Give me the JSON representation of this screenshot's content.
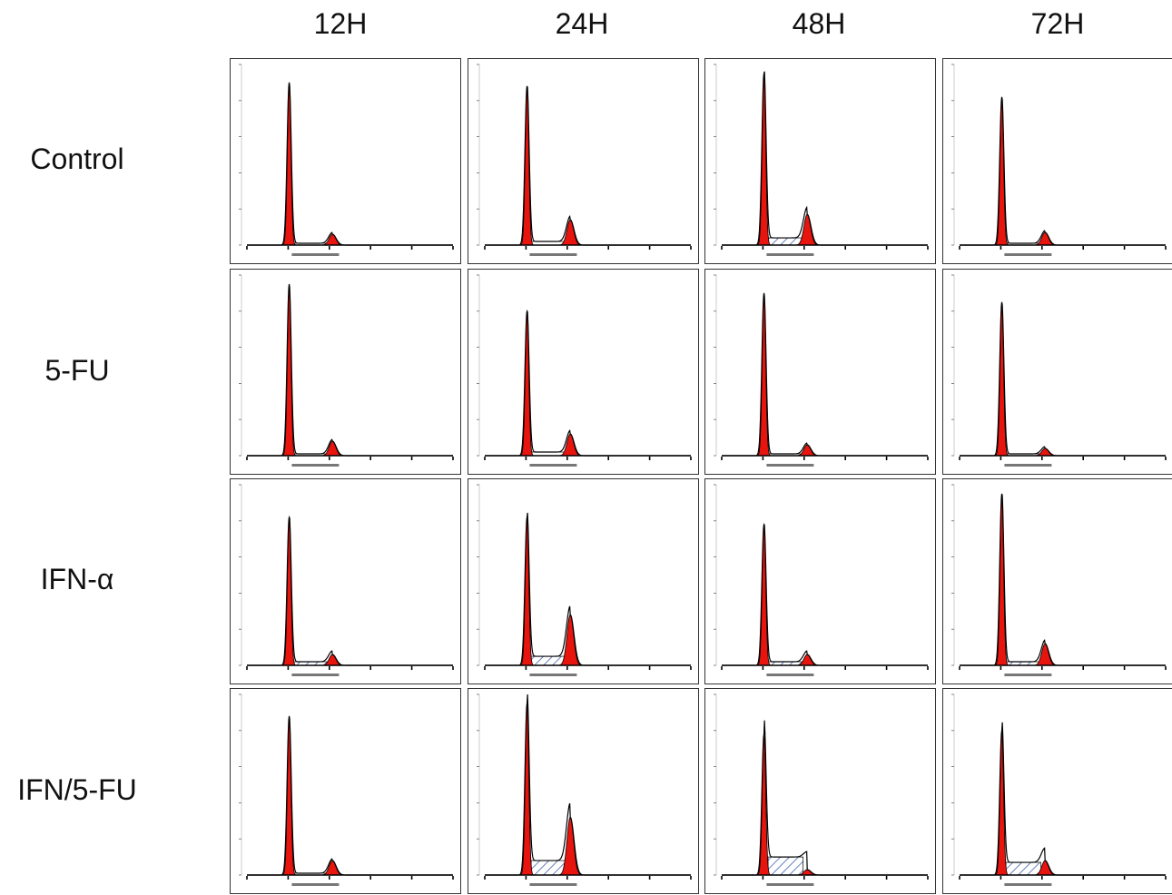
{
  "chart_data": {
    "type": "area",
    "columns": [
      "12H",
      "24H",
      "48H",
      "72H"
    ],
    "rows": [
      "Control",
      "5-FU",
      "IFN-α",
      "IFN/5-FU"
    ],
    "colors": {
      "g1_g2_fill": "#e8150f",
      "s_phase_hatch": "#2a4fa0",
      "trace": "#000000",
      "frame": "#333333"
    },
    "xlim": [
      0,
      200
    ],
    "ylim": [
      0,
      1
    ],
    "panels": [
      [
        {
          "g1_peak": 0.9,
          "g2_peak": 0.06,
          "s_level": 0.01,
          "s_hatched": false
        },
        {
          "g1_peak": 0.88,
          "g2_peak": 0.14,
          "s_level": 0.02,
          "s_hatched": false
        },
        {
          "g1_peak": 0.95,
          "g2_peak": 0.17,
          "s_level": 0.04,
          "s_hatched": true
        },
        {
          "g1_peak": 0.82,
          "g2_peak": 0.07,
          "s_level": 0.01,
          "s_hatched": false
        }
      ],
      [
        {
          "g1_peak": 0.95,
          "g2_peak": 0.08,
          "s_level": 0.01,
          "s_hatched": false
        },
        {
          "g1_peak": 0.8,
          "g2_peak": 0.12,
          "s_level": 0.02,
          "s_hatched": false
        },
        {
          "g1_peak": 0.9,
          "g2_peak": 0.06,
          "s_level": 0.01,
          "s_hatched": false
        },
        {
          "g1_peak": 0.85,
          "g2_peak": 0.04,
          "s_level": 0.01,
          "s_hatched": false
        }
      ],
      [
        {
          "g1_peak": 0.82,
          "g2_peak": 0.06,
          "s_level": 0.02,
          "s_hatched": true
        },
        {
          "g1_peak": 0.82,
          "g2_peak": 0.28,
          "s_level": 0.05,
          "s_hatched": true
        },
        {
          "g1_peak": 0.78,
          "g2_peak": 0.06,
          "s_level": 0.02,
          "s_hatched": true
        },
        {
          "g1_peak": 0.95,
          "g2_peak": 0.12,
          "s_level": 0.02,
          "s_hatched": true
        }
      ],
      [
        {
          "g1_peak": 0.88,
          "g2_peak": 0.08,
          "s_level": 0.01,
          "s_hatched": false
        },
        {
          "g1_peak": 0.95,
          "g2_peak": 0.32,
          "s_level": 0.08,
          "s_hatched": true
        },
        {
          "g1_peak": 0.78,
          "g2_peak": 0.03,
          "s_level": 0.1,
          "s_hatched": true
        },
        {
          "g1_peak": 0.8,
          "g2_peak": 0.08,
          "s_level": 0.07,
          "s_hatched": true
        }
      ]
    ]
  }
}
